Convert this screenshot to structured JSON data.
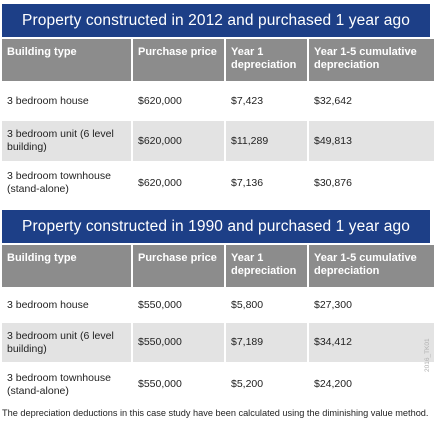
{
  "headers": [
    "Building type",
    "Purchase price",
    "Year 1 depreciation",
    "Year 1-5 cumulative depreciation"
  ],
  "tables": [
    {
      "title": "Property constructed in 2012 and purchased 1 year ago",
      "rows": [
        {
          "type": "3 bedroom house",
          "price": "$620,000",
          "year1": "$7,423",
          "cumulative": "$32,642"
        },
        {
          "type": "3 bedroom unit (6 level building)",
          "price": "$620,000",
          "year1": "$11,289",
          "cumulative": "$49,813"
        },
        {
          "type": "3 bedroom townhouse (stand-alone)",
          "price": "$620,000",
          "year1": "$7,136",
          "cumulative": "$30,876"
        }
      ]
    },
    {
      "title": "Property constructed in 1990 and purchased 1 year ago",
      "rows": [
        {
          "type": "3 bedroom house",
          "price": "$550,000",
          "year1": "$5,800",
          "cumulative": "$27,300"
        },
        {
          "type": "3 bedroom unit (6 level building)",
          "price": "$550,000",
          "year1": "$7,189",
          "cumulative": "$34,412"
        },
        {
          "type": "3 bedroom townhouse (stand-alone)",
          "price": "$550,000",
          "year1": "$5,200",
          "cumulative": "$24,200"
        }
      ]
    }
  ],
  "footnote": "The depreciation deductions in this case study have been calculated using the diminishing value method.",
  "watermark": "2016_TK01"
}
